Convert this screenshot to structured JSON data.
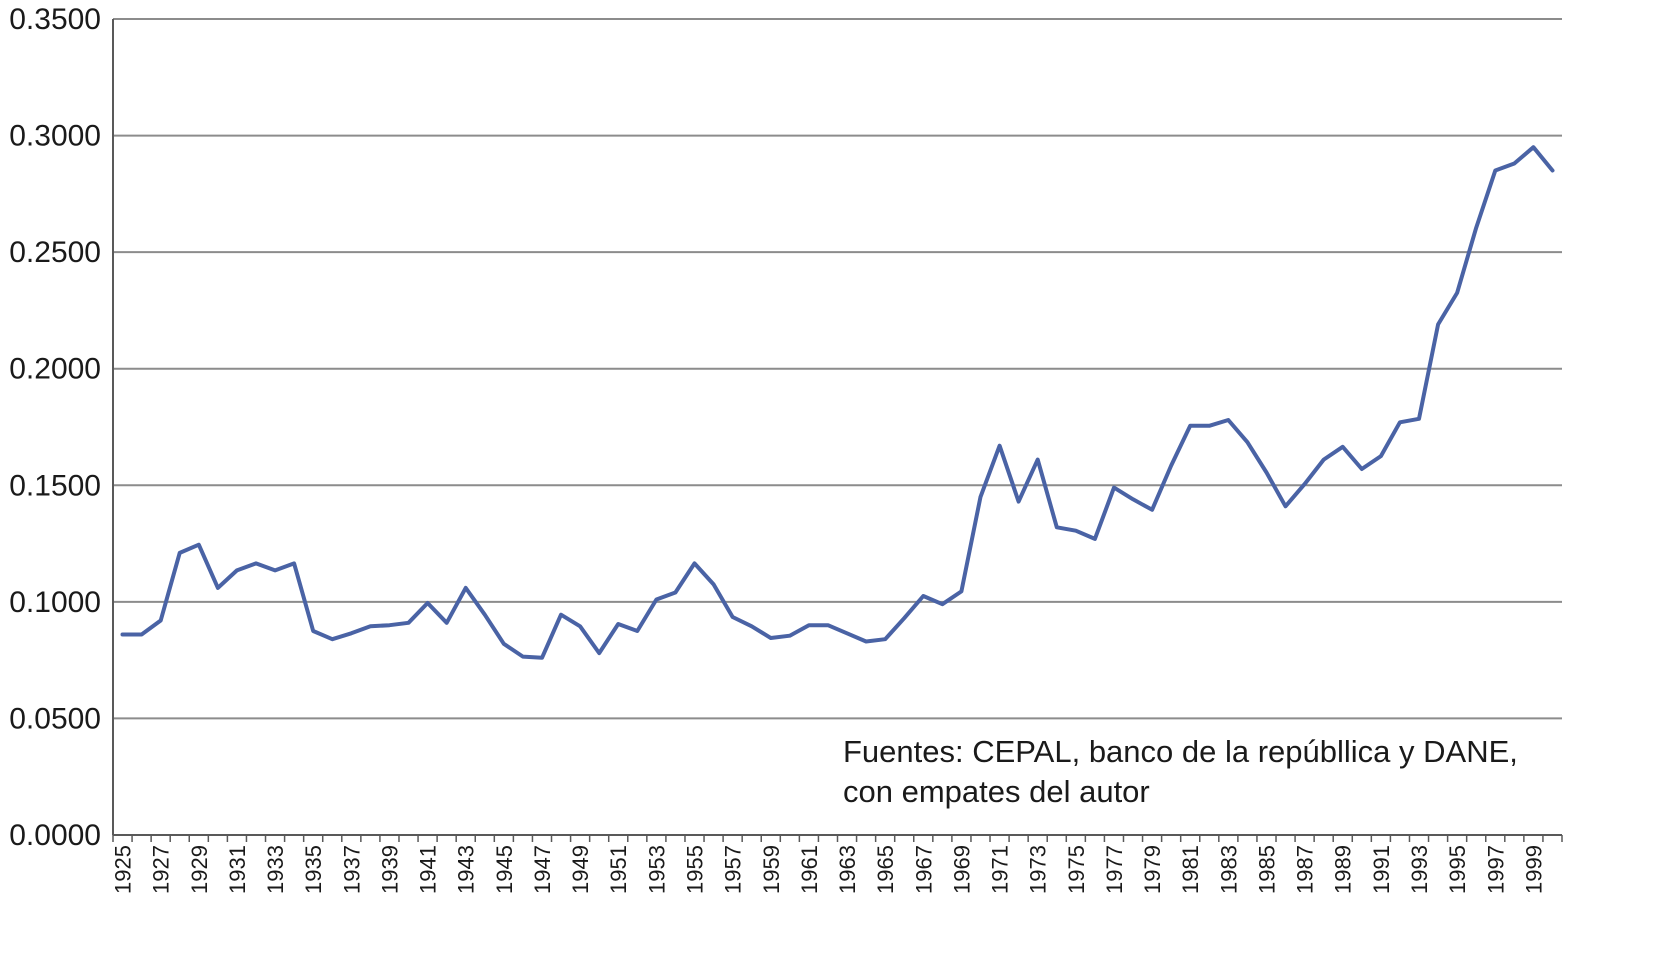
{
  "chart_data": {
    "type": "line",
    "title": "",
    "xlabel": "",
    "ylabel": "",
    "x": [
      1925,
      1926,
      1927,
      1928,
      1929,
      1930,
      1931,
      1932,
      1933,
      1934,
      1935,
      1936,
      1937,
      1938,
      1939,
      1940,
      1941,
      1942,
      1943,
      1944,
      1945,
      1946,
      1947,
      1948,
      1949,
      1950,
      1951,
      1952,
      1953,
      1954,
      1955,
      1956,
      1957,
      1958,
      1959,
      1960,
      1961,
      1962,
      1963,
      1964,
      1965,
      1966,
      1967,
      1968,
      1969,
      1970,
      1971,
      1972,
      1973,
      1974,
      1975,
      1976,
      1977,
      1978,
      1979,
      1980,
      1981,
      1982,
      1983,
      1984,
      1985,
      1986,
      1987,
      1988,
      1989,
      1990,
      1991,
      1992,
      1993,
      1994,
      1995,
      1996,
      1997,
      1998,
      1999,
      2000
    ],
    "series": [
      {
        "values": [
          0.086,
          0.086,
          0.092,
          0.121,
          0.1245,
          0.106,
          0.1135,
          0.1165,
          0.1135,
          0.1165,
          0.0875,
          0.084,
          0.0865,
          0.0895,
          0.09,
          0.091,
          0.0995,
          0.091,
          0.106,
          0.0945,
          0.082,
          0.0765,
          0.076,
          0.0945,
          0.0895,
          0.078,
          0.0905,
          0.0875,
          0.101,
          0.104,
          0.1165,
          0.1075,
          0.0935,
          0.0895,
          0.0845,
          0.0855,
          0.09,
          0.09,
          0.0865,
          0.083,
          0.084,
          0.093,
          0.1025,
          0.099,
          0.1045,
          0.145,
          0.167,
          0.143,
          0.161,
          0.132,
          0.1305,
          0.127,
          0.149,
          0.144,
          0.1395,
          0.1585,
          0.1755,
          0.1755,
          0.178,
          0.1685,
          0.1555,
          0.141,
          0.1505,
          0.161,
          0.1665,
          0.157,
          0.1625,
          0.177,
          0.1785,
          0.219,
          0.2325,
          0.2605,
          0.285,
          0.288,
          0.295,
          0.285
        ],
        "color": "#4a63a5"
      }
    ],
    "ylim": [
      0,
      0.35
    ],
    "yticks": [
      "0.0000",
      "0.0500",
      "0.1000",
      "0.1500",
      "0.2000",
      "0.2500",
      "0.3000",
      "0.3500"
    ],
    "xtick_labels": [
      "1925",
      "1927",
      "1929",
      "1931",
      "1933",
      "1935",
      "1937",
      "1939",
      "1941",
      "1943",
      "1945",
      "1947",
      "1949",
      "1951",
      "1953",
      "1955",
      "1957",
      "1959",
      "1961",
      "1963",
      "1965",
      "1967",
      "1969",
      "1971",
      "1973",
      "1975",
      "1977",
      "1979",
      "1981",
      "1983",
      "1985",
      "1987",
      "1989",
      "1991",
      "1993",
      "1995",
      "1997",
      "1999"
    ],
    "grid": true,
    "legend": "none",
    "annotation": {
      "line1": "Fuentes: CEPAL, banco de la repúbllica y DANE,",
      "line2": "con empates  del autor"
    },
    "colors": {
      "line": "#4a63a5",
      "grid": "#8c8c8c",
      "axis": "#595959"
    }
  }
}
